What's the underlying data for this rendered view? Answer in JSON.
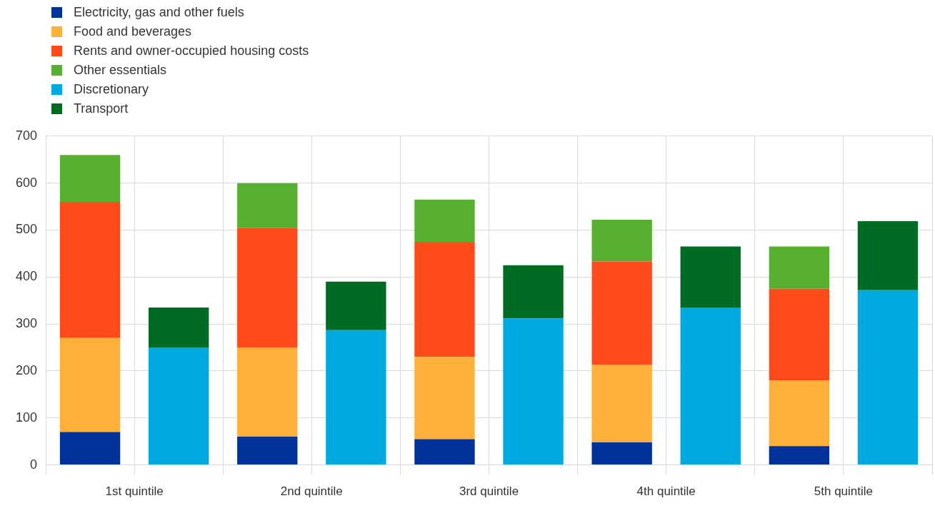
{
  "chart_data": {
    "type": "bar",
    "stacked": true,
    "categories": [
      "1st quintile",
      null,
      "2nd quintile",
      null,
      "3rd quintile",
      null,
      "4th quintile",
      null,
      "5th quintile",
      null
    ],
    "series": [
      {
        "name": "Electricity, gas and other fuels",
        "color": "#003299",
        "values": [
          70,
          null,
          60,
          null,
          55,
          null,
          48,
          null,
          40,
          null
        ]
      },
      {
        "name": "Food and beverages",
        "color": "#ffb03b",
        "values": [
          200,
          null,
          190,
          null,
          175,
          null,
          165,
          null,
          140,
          null
        ]
      },
      {
        "name": "Rents and owner-occupied housing costs",
        "color": "#ff4b1a",
        "values": [
          290,
          null,
          255,
          null,
          245,
          null,
          220,
          null,
          195,
          null
        ]
      },
      {
        "name": "Other essentials",
        "color": "#58b031",
        "values": [
          100,
          null,
          95,
          null,
          90,
          null,
          89,
          null,
          90,
          null
        ]
      },
      {
        "name": "Discretionary",
        "color": "#00a9e0",
        "values": [
          null,
          250,
          null,
          287,
          null,
          312,
          null,
          335,
          null,
          372
        ]
      },
      {
        "name": "Transport",
        "color": "#006b22",
        "values": [
          null,
          85,
          null,
          103,
          null,
          113,
          null,
          130,
          null,
          147
        ]
      }
    ],
    "ylim": [
      0,
      700
    ],
    "yticks": [
      0,
      100,
      200,
      300,
      400,
      500,
      600,
      700
    ],
    "grid": true,
    "legend": "top left"
  }
}
